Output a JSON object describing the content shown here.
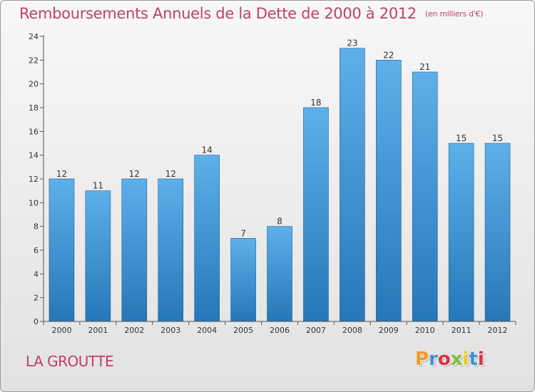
{
  "header": {
    "title": "Remboursements Annuels de la Dette de 2000 à 2012",
    "unit": "(en milliers d'€)"
  },
  "footer": {
    "commune": "LA GROUTTE",
    "logo_text": "Proxiti"
  },
  "logo_colors": [
    "#f29a1f",
    "#3f8fd6",
    "#d8334a",
    "#7cbf3a",
    "#f2c41f",
    "#3f8fd6",
    "#d8334a"
  ],
  "colors": {
    "bar_top": "#5eb0ea",
    "bar_bottom": "#2577b8",
    "bar_edge": "#1e5f95",
    "title": "#c0406e"
  },
  "chart_data": {
    "type": "bar",
    "title": "Remboursements Annuels de la Dette de 2000 à 2012",
    "xlabel": "",
    "ylabel": "",
    "categories": [
      "2000",
      "2001",
      "2002",
      "2003",
      "2004",
      "2005",
      "2006",
      "2007",
      "2008",
      "2009",
      "2010",
      "2011",
      "2012"
    ],
    "values": [
      12,
      11,
      12,
      12,
      14,
      7,
      8,
      18,
      23,
      22,
      21,
      15,
      15
    ],
    "value_labels": [
      "12",
      "11",
      "12",
      "12",
      "14",
      "7",
      "8",
      "18",
      "23",
      "22",
      "21",
      "15",
      "15"
    ],
    "ylim": [
      0,
      24
    ],
    "yticks": [
      "0",
      "2",
      "4",
      "6",
      "8",
      "10",
      "12",
      "14",
      "16",
      "18",
      "20",
      "22",
      "24"
    ],
    "grid": false,
    "legend": "none"
  }
}
